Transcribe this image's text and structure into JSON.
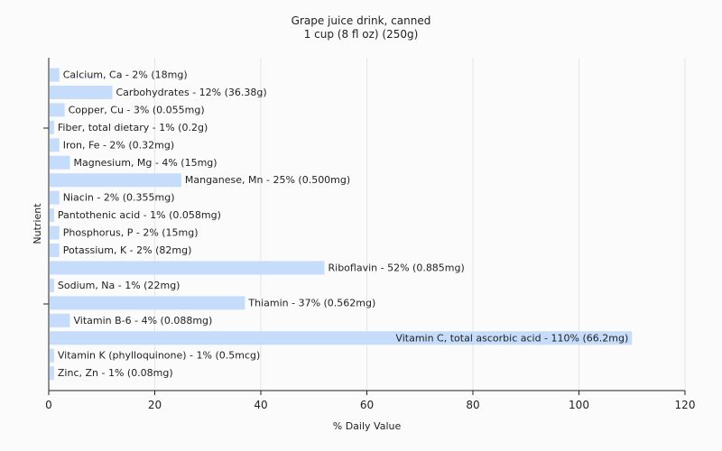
{
  "chart_data": {
    "type": "bar",
    "orientation": "horizontal",
    "title": "Grape juice drink, canned",
    "subtitle": "1 cup (8 fl oz) (250g)",
    "xlabel": "% Daily Value",
    "ylabel": "Nutrient",
    "xlim": [
      0,
      120
    ],
    "xticks": [
      0,
      20,
      40,
      60,
      80,
      100,
      120
    ],
    "grid": true,
    "bar_color": "#c6dcfb",
    "categories": [
      "Calcium, Ca",
      "Carbohydrates",
      "Copper, Cu",
      "Fiber, total dietary",
      "Iron, Fe",
      "Magnesium, Mg",
      "Manganese, Mn",
      "Niacin",
      "Pantothenic acid",
      "Phosphorus, P",
      "Potassium, K",
      "Riboflavin",
      "Sodium, Na",
      "Thiamin",
      "Vitamin B-6",
      "Vitamin C, total ascorbic acid",
      "Vitamin K (phylloquinone)",
      "Zinc, Zn"
    ],
    "values": [
      2,
      12,
      3,
      1,
      2,
      4,
      25,
      2,
      1,
      2,
      2,
      52,
      1,
      37,
      4,
      110,
      1,
      1
    ],
    "labels": [
      "Calcium, Ca - 2% (18mg)",
      "Carbohydrates - 12% (36.38g)",
      "Copper, Cu - 3% (0.055mg)",
      "Fiber, total dietary - 1% (0.2g)",
      "Iron, Fe - 2% (0.32mg)",
      "Magnesium, Mg - 4% (15mg)",
      "Manganese, Mn - 25% (0.500mg)",
      "Niacin - 2% (0.355mg)",
      "Pantothenic acid - 1% (0.058mg)",
      "Phosphorus, P - 2% (15mg)",
      "Potassium, K - 2% (82mg)",
      "Riboflavin - 52% (0.885mg)",
      "Sodium, Na - 1% (22mg)",
      "Thiamin - 37% (0.562mg)",
      "Vitamin B-6 - 4% (0.088mg)",
      "Vitamin C, total ascorbic acid - 110% (66.2mg)",
      "Vitamin K (phylloquinone) - 1% (0.5mcg)",
      "Zinc, Zn - 1% (0.08mg)"
    ]
  }
}
